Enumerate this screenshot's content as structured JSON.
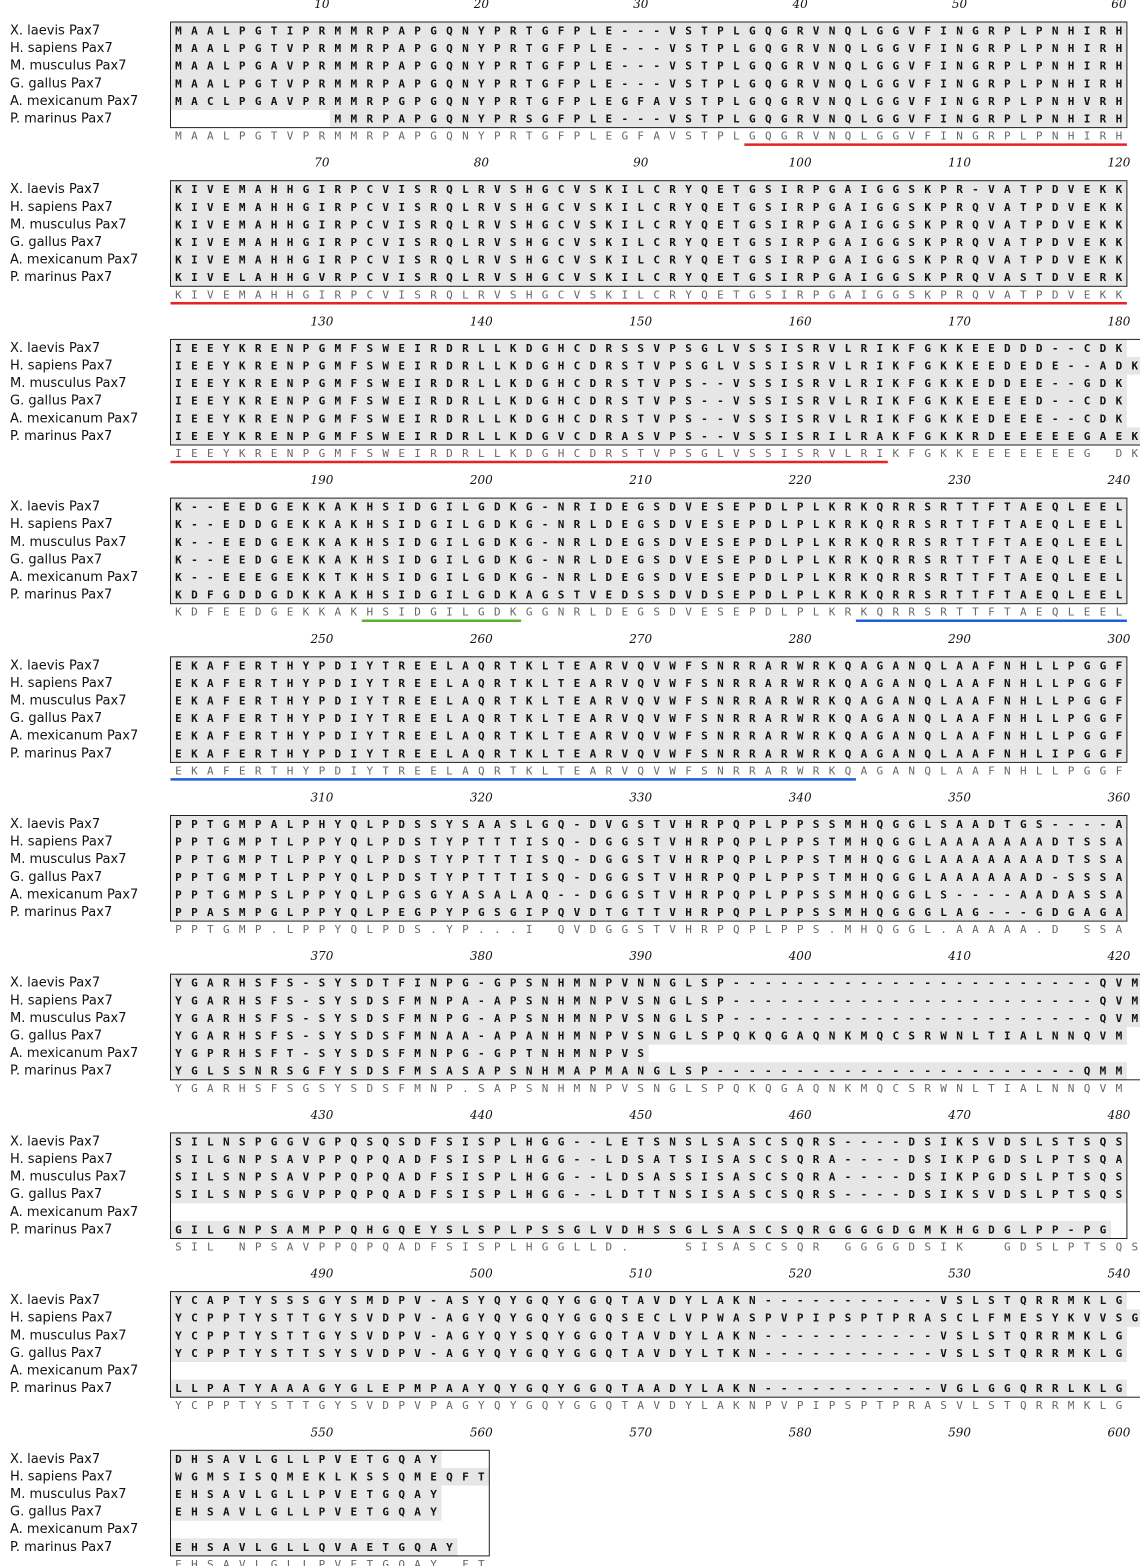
{
  "colors": {
    "shade": "#e6e6e6",
    "box": "#222222",
    "red": "#e8231f",
    "green": "#5fb030",
    "blue": "#1f5fd8",
    "consensus": "#666666"
  },
  "species": [
    "X. laevis Pax7",
    "H. sapiens Pax7",
    "M. musculus Pax7",
    "G. gallus Pax7",
    "A. mexicanum Pax7",
    "P. marinus Pax7"
  ],
  "blocks": [
    {
      "ruler": [
        "10",
        "20",
        "30",
        "40",
        "50",
        "60"
      ],
      "rows": [
        "MAALPGTIPRMMRPAPGQNYPRTGFPLE---VSTPLGQGRVNQLGGVFINGRPLPNHIRH",
        "MAALPGTVPRMMRPAPGQNYPRTGFPLE---VSTPLGQGRVNQLGGVFINGRPLPNHIRH",
        "MAALPGAVPRMMRPAPGQNYPRTGFPLE---VSTPLGQGRVNQLGGVFINGRPLPNHIRH",
        "MAALPGTVPRMMRPAPGQNYPRTGFPLE---VSTPLGQGRVNQLGGVFINGRPLPNHIRH",
        "MACLPGAVPRMMRPGPGQNYPRTGFPLEGFAVSTPLGQGRVNQLGGVFINGRPLPNHVRH",
        "          MMRPAPGQNYPRSGFPLE---VSTPLGQGRVNQLGGVFINGRPLPNHIRH"
      ],
      "consensus": "MAALPGTVPRMMRPAPGQNYPRTGFPLEGFAVSTPLGQGRVNQLGGVFINGRPLPNHIRH"
    },
    {
      "ruler": [
        "70",
        "80",
        "90",
        "100",
        "110",
        "120"
      ],
      "rows": [
        "KIVEMAHHGIRPCVISRQLRVSHGCVSKILCRYQETGSIRPGAIGGSKPR-VATPDVEKK",
        "KIVEMAHHGIRPCVISRQLRVSHGCVSKILCRYQETGSIRPGAIGGSKPRQVATPDVEKK",
        "KIVEMAHHGIRPCVISRQLRVSHGCVSKILCRYQETGSIRPGAIGGSKPRQVATPDVEKK",
        "KIVEMAHHGIRPCVISRQLRVSHGCVSKILCRYQETGSIRPGAIGGSKPRQVATPDVEKK",
        "KIVEMAHHGIRPCVISRQLRVSHGCVSKILCRYQETGSIRPGAIGGSKPRQVATPDVEKK",
        "KIVELAHHGVRPCVISRQLRVSHGCVSKILCRYQETGSIRPGAIGGSKPRQVASTDVERK"
      ],
      "consensus": "KIVEMAHHGIRPCVISRQLRVSHGCVSKILCRYQETGSIRPGAIGGSKPRQVATPDVEKK"
    },
    {
      "ruler": [
        "130",
        "140",
        "150",
        "160",
        "170",
        "180"
      ],
      "rows": [
        "IEEYKRENPGMFSWEIRDRLLKDGHCDRSSVPSGLVSSISRVLRIKFGKKEEDDD--CDK",
        "IEEYKRENPGMFSWEIRDRLLKDGHCDRSTVPSGLVSSISRVLRIKFGKKEEDEDE--ADK",
        "IEEYKRENPGMFSWEIRDRLLKDGHCDRSTVPS--VSSISRVLRIKFGKKEDDEE--GDK",
        "IEEYKRENPGMFSWEIRDRLLKDGHCDRSTVPS--VSSISRVLRIKFGKKEEEED--CDK",
        "IEEYKRENPGMFSWEIRDRLLKDGHCDRSTVPS--VSSISRVLRIKFGKKEDEEE--CDK",
        "IEEYKRENPGMFSWEIRDRLLKDGVCDRASVPS--VSSISRILRAKFGKKRDEEEEEGAEK"
      ],
      "consensus": "IEEYKRENPGMFSWEIRDRLLKDGHCDRSTVPSGLVSSISRVLRIKFGKKEEEEEEEG DK"
    },
    {
      "ruler": [
        "190",
        "200",
        "210",
        "220",
        "230",
        "240"
      ],
      "rows": [
        "K--EEDGEKKAKHSIDGILGDKG-NRIDEGSDVESEPDLPLKRKQRRSRTTFTAEQLEEL",
        "K--EDDGEKKAKHSIDGILGDKG-NRLDEGSDVESEPDLPLKRKQRRSRTTFTAEQLEEL",
        "K--EEDGEKKAKHSIDGILGDKG-NRLDEGSDVESEPDLPLKRKQRRSRTTFTAEQLEEL",
        "K--EEDGEKKAKHSIDGILGDKG-NRLDEGSDVESEPDLPLKRKQRRSRTTFTAEQLEEL",
        "K--EEEGEKKTKHSIDGILGDKG-NRLDEGSDVESEPDLPLKRKQRRSRTTFTAEQLEEL",
        "KDFGDDGDKKAKHSIDGILGDKAGSTVEDSSDVDSEPDLPLKRKQRRSRTTFTAEQLEEL"
      ],
      "consensus": "KDFEEDGEKKAKHSIDGILGDKGGNRLDEGSDVESEPDLPLKRKQRRSRTTFTAEQLEEL"
    },
    {
      "ruler": [
        "250",
        "260",
        "270",
        "280",
        "290",
        "300"
      ],
      "rows": [
        "EKAFERTHYPDIYTREELAQRTKLTEARVQVWFSNRRARWRKQAGANQLAAFNHLLPGGF",
        "EKAFERTHYPDIYTREELAQRTKLTEARVQVWFSNRRARWRKQAGANQLAAFNHLLPGGF",
        "EKAFERTHYPDIYTREELAQRTKLTEARVQVWFSNRRARWRKQAGANQLAAFNHLLPGGF",
        "EKAFERTHYPDIYTREELAQRTKLTEARVQVWFSNRRARWRKQAGANQLAAFNHLLPGGF",
        "EKAFERTHYPDIYTREELAQRTKLTEARVQVWFSNRRARWRKQAGANQLAAFNHLLPGGF",
        "EKAFERTHYPDIYTREELAQRTKLTEARVQVWFSNRRARWRKQAGANQLAAFNHLIPGGF"
      ],
      "consensus": "EKAFERTHYPDIYTREELAQRTKLTEARVQVWFSNRRARWRKQAGANQLAAFNHLLPGGF"
    },
    {
      "ruler": [
        "310",
        "320",
        "330",
        "340",
        "350",
        "360"
      ],
      "rows": [
        "PPTGMPALPHYQLPDSSYSAASLGQ-DVGSTVHRPQPLPPSSMHQGGLSAADTGS----A",
        "PPTGMPTLPPYQLPDSTYPTTTISQ-DGGSTVHRPQPLPPSTMHQGGLAAAAAAADTSSA",
        "PPTGMPTLPPYQLPDSTYPTTTISQ-DGGSTVHRPQPLPPSTMHQGGLAAAAAAADTSSA",
        "PPTGMPTLPPYQLPDSTYPTTTISQ-DGGSTVHRPQPLPPSTMHQGGLAAAAAAD-SSSA",
        "PPTGMPSLPPYQLPGSGYASALAQ--DGGSTVHRPQPLPPSSMHQGGLS----AADASSA",
        "PPASMPGLPPYQLPEGPYPGSGIPQVDTGTTVHRPQPLPPSSMHQGGGLAG---GDGAGA"
      ],
      "consensus": "PPTGMP.LPPYQLPDS.YP...I QVDGGSTVHRPQPLPPS.MHQGGL.AAAAA.D SSA"
    },
    {
      "ruler": [
        "370",
        "380",
        "390",
        "400",
        "410",
        "420"
      ],
      "rows": [
        "YGARHSFS-SYSDTFINPG-GPSNHMNPVNNGLSP-----------------------QVM",
        "YGARHSFS-SYSDSFMNPA-APSNHMNPVSNGLSP-----------------------QVM",
        "YGARHSFS-SYSDSFMNPG-APSNHMNPVSNGLSP-----------------------QVM",
        "YGARHSFS-SYSDSFMNAA-APANHMNPVSNGLSPQKQGAQNKMQCSRWNLTIALNNQVM",
        "YGPRHSFT-SYSDSFMNPG-GPTNHMNPVS                              ",
        "YGLSSNRSGFYSDSFMSASAPSNHMAPMANGLSP-----------------------QMM"
      ],
      "consensus": "YGARHSFSGSYSDSFMNP.SAPSNHMNPVSNGLSPQKQGAQNKMQCSRWNLTIALNNQVM"
    },
    {
      "ruler": [
        "430",
        "440",
        "450",
        "460",
        "470",
        "480"
      ],
      "rows": [
        "SILNSPGGVGPQSQSDFSISPLHGG--LETSNSLSASCSQRS----DSIKSVDSLSTSQS",
        "SILGNPSAVPPQPQADFSISPLHGG--LDSATSISASCSQRA----DSIKPGDSLPTSQA",
        "SILSNPSAVPPQPQADFSISPLHGG--LDSASSISASCSQRA----DSIKPGDSLPTSQS",
        "SILSNPSGVPPQPQADFSISPLHGG--LDTTNSISASCSQRS----DSIKSVDSLPTSQS",
        "                                                            ",
        "GILGNPSAMPPQHGQEYSLSPLPSSGLVDHSSGLSASCSQRGGGGDGMKHGDGLPP-PG"
      ],
      "consensus": "SIL NPSAVPPQPQADFSISPLHGGLLD.   SISASCSQR GGGGDSIK  GDSLPTSQS"
    },
    {
      "ruler": [
        "490",
        "500",
        "510",
        "520",
        "530",
        "540"
      ],
      "rows": [
        "YCAPTYSSSGYSMDPV-ASYQYGQYGGQTAVDYLAKN-----------VSLSTQRRMKLG",
        "YCPPTYSTTGYSVDPV-AGYQYGQYGGQSECLVPWASPVPIPSPTPRASCLFMESYKVVSG",
        "YCPPTYSTTGYSVDPV-AGYQYSQYGGQTAVDYLAKN-----------VSLSTQRRMKLG",
        "YCPPTYSTTSYSVDPV-AGYQYGQYGGQTAVDYLTKN-----------VSLSTQRRMKLG",
        "                                                            ",
        "LLPATYAAAGYGLEPMPAAYQYGQYGGQTAADYLAKN-----------VGLGGQRRLKLG"
      ],
      "consensus": "YCPPTYSTTGYSVDPVPAGYQYGQYGGQTAVDYLAKNPVPIPSPTPRASVLSTQRRMKLG"
    },
    {
      "ruler": [
        "550",
        "560",
        "570",
        "580",
        "590",
        "600"
      ],
      "rows": [
        "DHSAVLGLLPVETGQAY",
        "WGMSISQMEKLKSSQMEQFT",
        "EHSAVLGLLPVETGQAY",
        "EHSAVLGLLPVETGQAY",
        "",
        "EHSAVLGLLQVAETGQAY"
      ],
      "consensus": "EHSAVLGLLPVETGQAY FT"
    }
  ],
  "annotations": [
    {
      "block": 0,
      "start": 37,
      "end": 60,
      "color": "red"
    },
    {
      "block": 1,
      "start": 1,
      "end": 60,
      "color": "red"
    },
    {
      "block": 2,
      "start": 1,
      "end": 45,
      "color": "red"
    },
    {
      "block": 3,
      "start": 13,
      "end": 22,
      "color": "green"
    },
    {
      "block": 3,
      "start": 44,
      "end": 60,
      "color": "blue"
    },
    {
      "block": 4,
      "start": 1,
      "end": 43,
      "color": "blue"
    }
  ]
}
